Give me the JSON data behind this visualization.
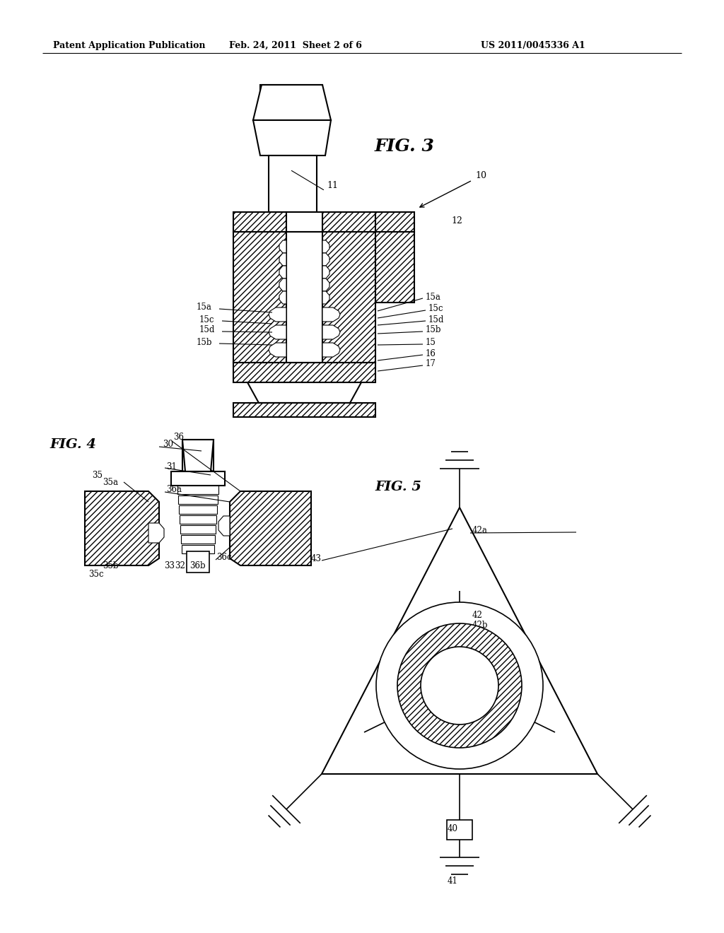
{
  "bg_color": "#ffffff",
  "header_left": "Patent Application Publication",
  "header_mid": "Feb. 24, 2011  Sheet 2 of 6",
  "header_right": "US 2011/0045336 A1",
  "fig3_label": "FIG. 3",
  "fig4_label": "FIG. 4",
  "fig5_label": "FIG. 5"
}
